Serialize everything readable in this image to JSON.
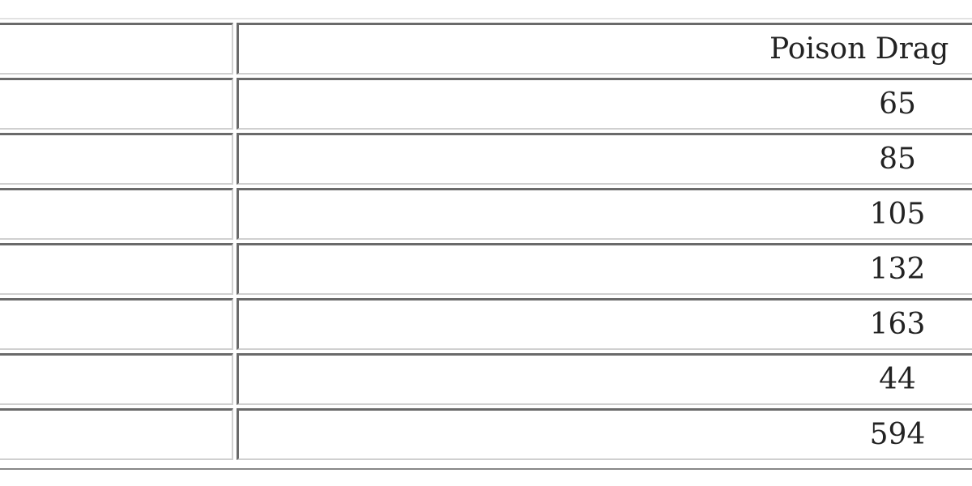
{
  "table": {
    "header": [
      "",
      "Poison Drag"
    ],
    "rows": [
      [
        "",
        "65"
      ],
      [
        "",
        "85"
      ],
      [
        "",
        "105"
      ],
      [
        "",
        "132"
      ],
      [
        "",
        "163"
      ],
      [
        "",
        "44"
      ],
      [
        "",
        "594"
      ]
    ]
  }
}
